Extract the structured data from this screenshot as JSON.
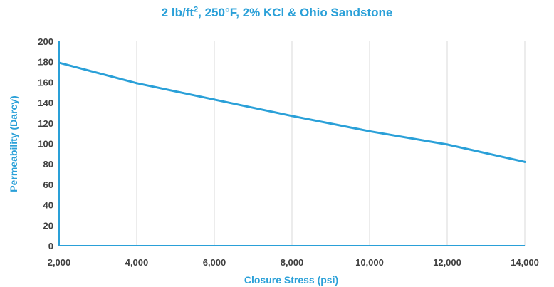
{
  "chart_data": {
    "type": "line",
    "title_parts": {
      "pre": "2 lb/ft",
      "sup": "2",
      "post": ", 250°F, 2% KCl & Ohio Sandstone"
    },
    "xlabel": "Closure Stress (psi)",
    "ylabel": "Permeability (Darcy)",
    "xlim": [
      2000,
      14000
    ],
    "ylim": [
      0,
      200
    ],
    "x_ticks": [
      2000,
      4000,
      6000,
      8000,
      10000,
      12000,
      14000
    ],
    "x_tick_labels": [
      "2,000",
      "4,000",
      "6,000",
      "8,000",
      "10,000",
      "12,000",
      "14,000"
    ],
    "y_ticks": [
      0,
      20,
      40,
      60,
      80,
      100,
      120,
      140,
      160,
      180,
      200
    ],
    "y_tick_labels": [
      "0",
      "20",
      "40",
      "60",
      "80",
      "100",
      "120",
      "140",
      "160",
      "180",
      "200"
    ],
    "grid": "vertical",
    "series": [
      {
        "x": [
          2000,
          4000,
          6000,
          8000,
          10000,
          12000,
          14000
        ],
        "values": [
          179,
          159,
          143,
          127,
          112,
          99,
          82
        ]
      }
    ],
    "colors": {
      "line": "#2AA0D8",
      "axis": "#2AA0D8",
      "title": "#2AA0D8",
      "grid": "#D9D9D9",
      "tick_text": "#404040"
    }
  }
}
